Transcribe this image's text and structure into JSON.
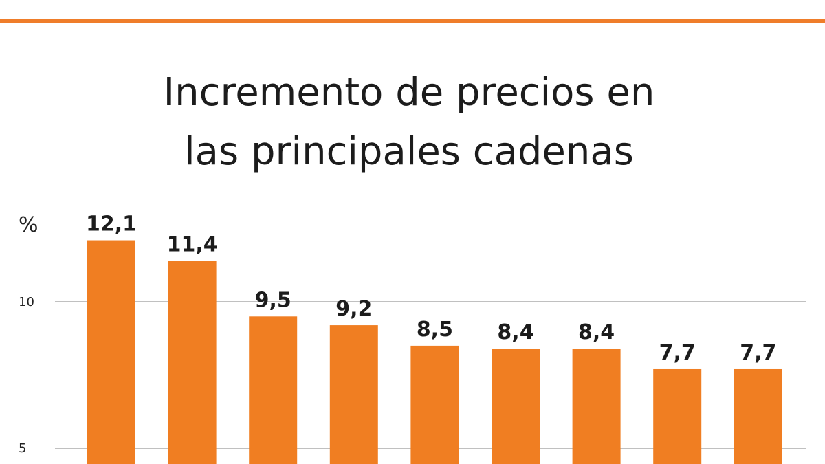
{
  "title": {
    "line1": "Incremento de precios en",
    "line2": "las principales cadenas"
  },
  "colors": {
    "accent": "#ef7d2a",
    "bar": "#f07e22",
    "gridline": "#9a9a9a",
    "text": "#1c1c1c"
  },
  "chart_data": {
    "type": "bar",
    "title": "Incremento de precios en las principales cadenas",
    "ylabel": "%",
    "categories": [
      "",
      "",
      "",
      "",
      "",
      "",
      "",
      "",
      ""
    ],
    "values": [
      12.1,
      11.4,
      9.5,
      9.2,
      8.5,
      8.4,
      8.4,
      7.7,
      7.7
    ],
    "value_labels": [
      "12,1",
      "11,4",
      "9,5",
      "9,2",
      "8,5",
      "8,4",
      "8,4",
      "7,7",
      "7,7"
    ],
    "yticks": [
      5,
      10
    ],
    "ytick_labels": [
      "5",
      "10"
    ],
    "grid": true,
    "legend": "none"
  }
}
